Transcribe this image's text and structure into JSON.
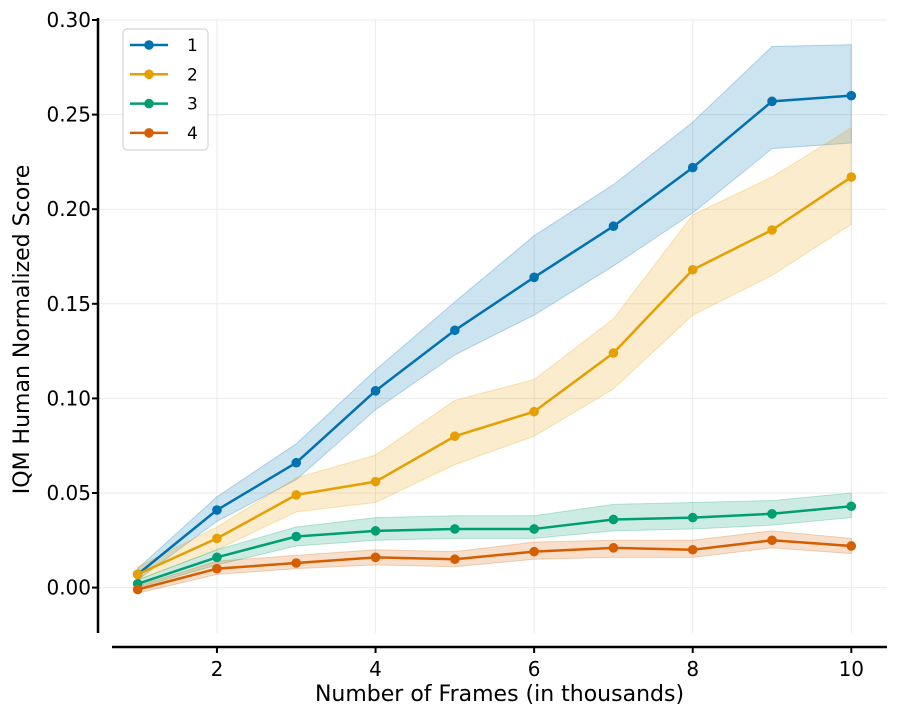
{
  "chart_data": {
    "type": "line",
    "xlabel": "Number of Frames (in thousands)",
    "ylabel": "IQM Human Normalized Score",
    "xlim": [
      0.5,
      10.45
    ],
    "ylim": [
      -0.024,
      0.3
    ],
    "xticks": [
      2,
      4,
      6,
      8,
      10
    ],
    "xtick_labels": [
      "2",
      "4",
      "6",
      "8",
      "10"
    ],
    "yticks": [
      0.0,
      0.05,
      0.1,
      0.15,
      0.2,
      0.25,
      0.3
    ],
    "ytick_labels": [
      "0.00",
      "0.05",
      "0.10",
      "0.15",
      "0.20",
      "0.25",
      "0.30"
    ],
    "grid": true,
    "legend_position": "top-left",
    "x": [
      1,
      2,
      3,
      4,
      5,
      6,
      7,
      8,
      9,
      10
    ],
    "series": [
      {
        "name": "1",
        "color": "#0072b2",
        "values": [
          0.007,
          0.041,
          0.066,
          0.104,
          0.136,
          0.164,
          0.191,
          0.222,
          0.257,
          0.26
        ],
        "lower": [
          0.004,
          0.035,
          0.057,
          0.094,
          0.123,
          0.144,
          0.17,
          0.198,
          0.232,
          0.235
        ],
        "upper": [
          0.01,
          0.048,
          0.076,
          0.115,
          0.151,
          0.186,
          0.213,
          0.246,
          0.286,
          0.287
        ]
      },
      {
        "name": "2",
        "color": "#e69f00",
        "values": [
          0.007,
          0.026,
          0.049,
          0.056,
          0.08,
          0.093,
          0.124,
          0.168,
          0.189,
          0.217
        ],
        "lower": [
          0.004,
          0.02,
          0.04,
          0.045,
          0.065,
          0.08,
          0.105,
          0.144,
          0.165,
          0.192
        ],
        "upper": [
          0.011,
          0.032,
          0.058,
          0.07,
          0.099,
          0.11,
          0.142,
          0.197,
          0.217,
          0.243
        ]
      },
      {
        "name": "3",
        "color": "#009e73",
        "values": [
          0.002,
          0.016,
          0.027,
          0.03,
          0.031,
          0.031,
          0.036,
          0.037,
          0.039,
          0.043
        ],
        "lower": [
          0.0,
          0.012,
          0.022,
          0.025,
          0.026,
          0.026,
          0.03,
          0.031,
          0.033,
          0.037
        ],
        "upper": [
          0.004,
          0.02,
          0.032,
          0.037,
          0.038,
          0.038,
          0.044,
          0.045,
          0.046,
          0.05
        ]
      },
      {
        "name": "4",
        "color": "#d55e00",
        "values": [
          -0.001,
          0.01,
          0.013,
          0.016,
          0.015,
          0.019,
          0.021,
          0.02,
          0.025,
          0.022
        ],
        "lower": [
          -0.003,
          0.007,
          0.01,
          0.012,
          0.011,
          0.015,
          0.016,
          0.016,
          0.021,
          0.018
        ],
        "upper": [
          0.001,
          0.014,
          0.017,
          0.02,
          0.019,
          0.024,
          0.025,
          0.025,
          0.03,
          0.026
        ]
      }
    ]
  }
}
